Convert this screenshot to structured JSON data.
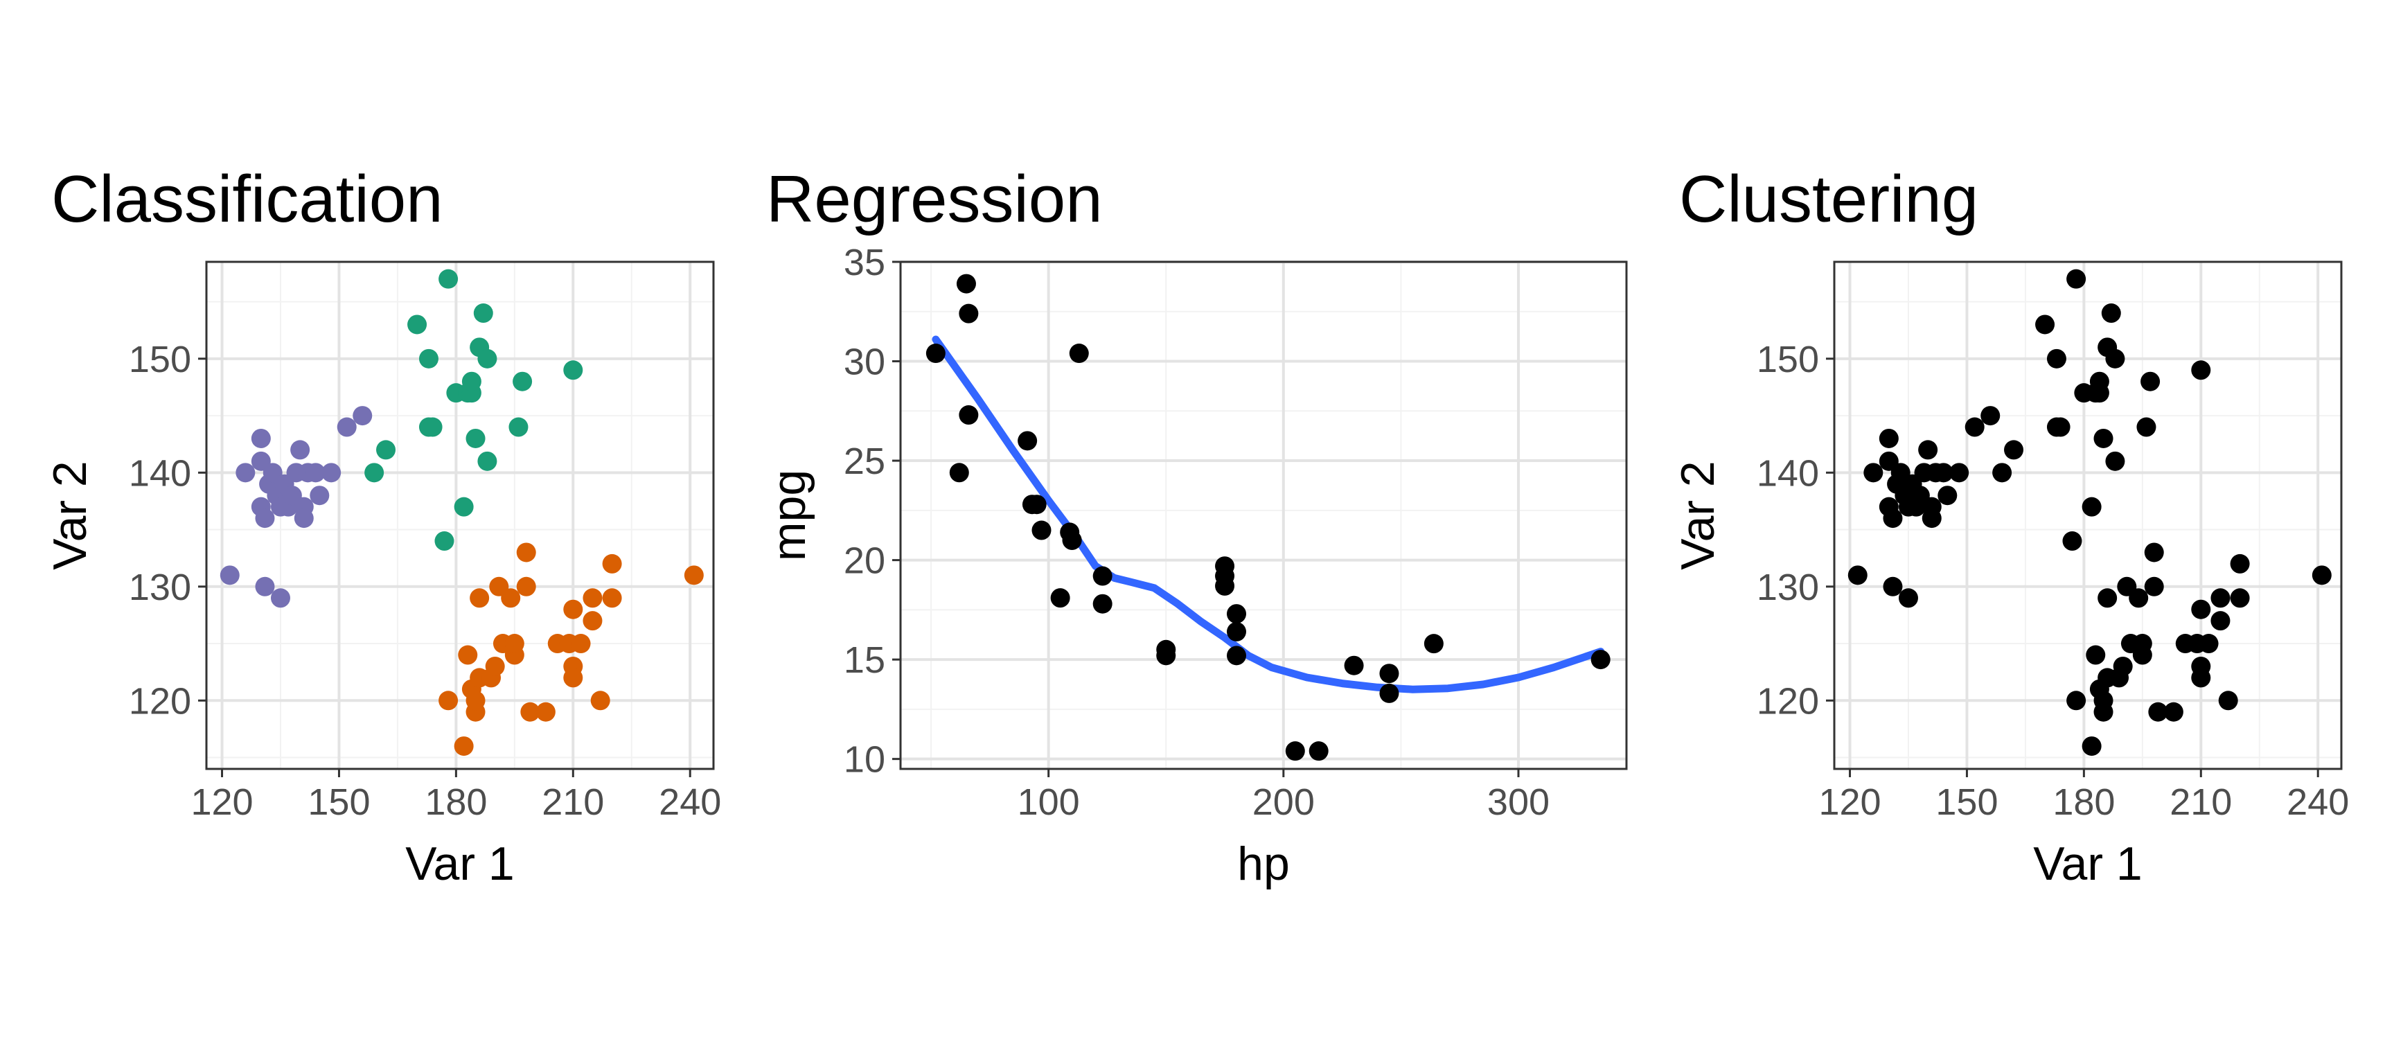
{
  "chart_data": [
    {
      "type": "scatter",
      "title": "Classification",
      "xlabel": "Var 1",
      "ylabel": "Var 2",
      "xlim": [
        116,
        246
      ],
      "ylim": [
        114,
        158.5
      ],
      "xticks": [
        120,
        150,
        180,
        210,
        240
      ],
      "yticks": [
        120,
        130,
        140,
        150
      ],
      "grid": true,
      "legend": "none",
      "colors": {
        "purple": "#7570b3",
        "green": "#1b9e77",
        "orange": "#d95f02"
      },
      "series": [
        {
          "color": "purple",
          "points": [
            [
              122,
              131
            ],
            [
              126,
              140
            ],
            [
              130,
              143
            ],
            [
              130,
              141
            ],
            [
              130,
              137
            ],
            [
              131,
              136
            ],
            [
              132,
              139
            ],
            [
              133,
              140
            ],
            [
              134,
              138
            ],
            [
              135,
              137
            ],
            [
              136,
              139
            ],
            [
              137,
              137
            ],
            [
              138,
              138
            ],
            [
              139,
              140
            ],
            [
              140,
              142
            ],
            [
              141,
              137
            ],
            [
              141,
              136
            ],
            [
              142,
              140
            ],
            [
              144,
              140
            ],
            [
              145,
              138
            ],
            [
              148,
              140
            ],
            [
              152,
              144
            ],
            [
              156,
              145
            ],
            [
              131,
              130
            ],
            [
              135,
              129
            ]
          ]
        },
        {
          "color": "green",
          "points": [
            [
              159,
              140
            ],
            [
              162,
              142
            ],
            [
              170,
              153
            ],
            [
              173,
              150
            ],
            [
              173,
              144
            ],
            [
              174,
              144
            ],
            [
              177,
              134
            ],
            [
              178,
              157
            ],
            [
              180,
              147
            ],
            [
              182,
              137
            ],
            [
              183,
              147
            ],
            [
              184,
              147
            ],
            [
              184,
              148
            ],
            [
              185,
              143
            ],
            [
              186,
              151
            ],
            [
              187,
              154
            ],
            [
              188,
              150
            ],
            [
              188,
              141
            ],
            [
              197,
              148
            ],
            [
              196,
              144
            ],
            [
              210,
              149
            ]
          ]
        },
        {
          "color": "orange",
          "points": [
            [
              178,
              120
            ],
            [
              182,
              116
            ],
            [
              183,
              124
            ],
            [
              184,
              121
            ],
            [
              185,
              119
            ],
            [
              185,
              120
            ],
            [
              186,
              129
            ],
            [
              186,
              122
            ],
            [
              189,
              122
            ],
            [
              190,
              123
            ],
            [
              191,
              130
            ],
            [
              192,
              125
            ],
            [
              194,
              129
            ],
            [
              195,
              124
            ],
            [
              195,
              125
            ],
            [
              199,
              119
            ],
            [
              198,
              130
            ],
            [
              198,
              133
            ],
            [
              203,
              119
            ],
            [
              206,
              125
            ],
            [
              209,
              125
            ],
            [
              210,
              128
            ],
            [
              210,
              123
            ],
            [
              210,
              122
            ],
            [
              212,
              125
            ],
            [
              215,
              129
            ],
            [
              215,
              127
            ],
            [
              217,
              120
            ],
            [
              220,
              129
            ],
            [
              220,
              132
            ],
            [
              241,
              131
            ]
          ]
        }
      ]
    },
    {
      "type": "scatter",
      "title": "Regression",
      "xlabel": "hp",
      "ylabel": "mpg",
      "xlim": [
        37,
        346
      ],
      "ylim": [
        9.5,
        35
      ],
      "xticks": [
        100,
        200,
        300
      ],
      "yticks": [
        10,
        15,
        20,
        25,
        30,
        35
      ],
      "grid": true,
      "legend": "none",
      "colors": {
        "points": "#000000",
        "smooth": "#3366ff"
      },
      "points": [
        [
          52,
          30.4
        ],
        [
          62,
          24.4
        ],
        [
          65,
          33.9
        ],
        [
          66,
          32.4
        ],
        [
          66,
          27.3
        ],
        [
          91,
          26.0
        ],
        [
          93,
          22.8
        ],
        [
          95,
          22.8
        ],
        [
          97,
          21.5
        ],
        [
          105,
          18.1
        ],
        [
          109,
          21.4
        ],
        [
          110,
          21.0
        ],
        [
          110,
          21.0
        ],
        [
          113,
          30.4
        ],
        [
          123,
          19.2
        ],
        [
          123,
          17.8
        ],
        [
          150,
          15.5
        ],
        [
          150,
          15.2
        ],
        [
          175,
          18.7
        ],
        [
          175,
          19.2
        ],
        [
          175,
          19.7
        ],
        [
          180,
          16.4
        ],
        [
          180,
          17.3
        ],
        [
          180,
          15.2
        ],
        [
          205,
          10.4
        ],
        [
          215,
          10.4
        ],
        [
          230,
          14.7
        ],
        [
          245,
          13.3
        ],
        [
          245,
          14.3
        ],
        [
          264,
          15.8
        ],
        [
          335,
          15.0
        ]
      ],
      "smooth": [
        [
          52,
          31.1
        ],
        [
          70,
          28.1
        ],
        [
          85,
          25.5
        ],
        [
          100,
          23.0
        ],
        [
          112,
          21.1
        ],
        [
          120,
          19.7
        ],
        [
          128,
          19.1
        ],
        [
          135,
          18.9
        ],
        [
          145,
          18.6
        ],
        [
          155,
          17.8
        ],
        [
          165,
          16.9
        ],
        [
          175,
          16.1
        ],
        [
          185,
          15.2
        ],
        [
          195,
          14.6
        ],
        [
          210,
          14.1
        ],
        [
          225,
          13.8
        ],
        [
          240,
          13.6
        ],
        [
          255,
          13.5
        ],
        [
          270,
          13.55
        ],
        [
          285,
          13.75
        ],
        [
          300,
          14.1
        ],
        [
          315,
          14.6
        ],
        [
          325,
          15.0
        ],
        [
          335,
          15.4
        ]
      ]
    },
    {
      "type": "scatter",
      "title": "Clustering",
      "xlabel": "Var 1",
      "ylabel": "Var 2",
      "xlim": [
        116,
        246
      ],
      "ylim": [
        114,
        158.5
      ],
      "xticks": [
        120,
        150,
        180,
        210,
        240
      ],
      "yticks": [
        120,
        130,
        140,
        150
      ],
      "grid": true,
      "legend": "none",
      "colors": {
        "points": "#000000"
      },
      "points": [
        [
          122,
          131
        ],
        [
          126,
          140
        ],
        [
          130,
          143
        ],
        [
          130,
          141
        ],
        [
          130,
          137
        ],
        [
          131,
          136
        ],
        [
          132,
          139
        ],
        [
          133,
          140
        ],
        [
          134,
          138
        ],
        [
          135,
          137
        ],
        [
          136,
          139
        ],
        [
          137,
          137
        ],
        [
          138,
          138
        ],
        [
          139,
          140
        ],
        [
          140,
          142
        ],
        [
          141,
          137
        ],
        [
          141,
          136
        ],
        [
          142,
          140
        ],
        [
          144,
          140
        ],
        [
          145,
          138
        ],
        [
          148,
          140
        ],
        [
          152,
          144
        ],
        [
          156,
          145
        ],
        [
          131,
          130
        ],
        [
          135,
          129
        ],
        [
          159,
          140
        ],
        [
          162,
          142
        ],
        [
          170,
          153
        ],
        [
          173,
          150
        ],
        [
          173,
          144
        ],
        [
          174,
          144
        ],
        [
          177,
          134
        ],
        [
          178,
          157
        ],
        [
          180,
          147
        ],
        [
          182,
          137
        ],
        [
          183,
          147
        ],
        [
          184,
          147
        ],
        [
          184,
          148
        ],
        [
          185,
          143
        ],
        [
          186,
          151
        ],
        [
          187,
          154
        ],
        [
          188,
          150
        ],
        [
          188,
          141
        ],
        [
          197,
          148
        ],
        [
          196,
          144
        ],
        [
          210,
          149
        ],
        [
          178,
          120
        ],
        [
          182,
          116
        ],
        [
          183,
          124
        ],
        [
          184,
          121
        ],
        [
          185,
          119
        ],
        [
          185,
          120
        ],
        [
          186,
          129
        ],
        [
          186,
          122
        ],
        [
          189,
          122
        ],
        [
          190,
          123
        ],
        [
          191,
          130
        ],
        [
          192,
          125
        ],
        [
          194,
          129
        ],
        [
          195,
          124
        ],
        [
          195,
          125
        ],
        [
          199,
          119
        ],
        [
          198,
          130
        ],
        [
          198,
          133
        ],
        [
          203,
          119
        ],
        [
          206,
          125
        ],
        [
          209,
          125
        ],
        [
          210,
          128
        ],
        [
          210,
          123
        ],
        [
          210,
          122
        ],
        [
          212,
          125
        ],
        [
          215,
          129
        ],
        [
          215,
          127
        ],
        [
          217,
          120
        ],
        [
          220,
          129
        ],
        [
          220,
          132
        ],
        [
          241,
          131
        ]
      ]
    }
  ]
}
